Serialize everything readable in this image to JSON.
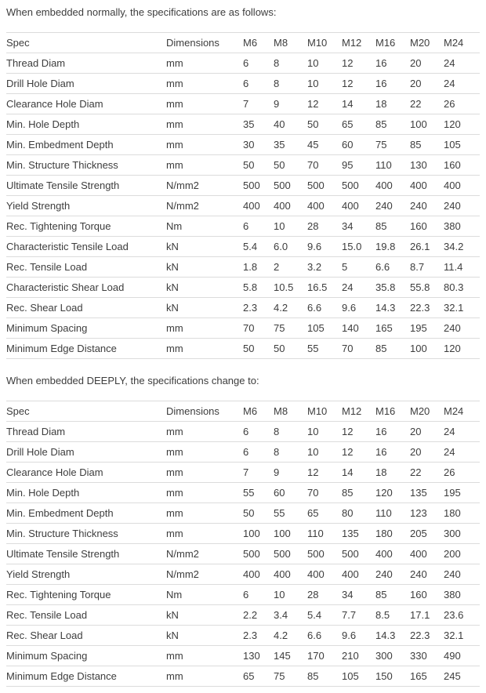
{
  "page": {
    "text_color": "#3d3d3d",
    "border_color": "#dcdcdc",
    "background_color": "#ffffff"
  },
  "sections": [
    {
      "intro": "When embedded normally, the specifications are as follows:",
      "table": {
        "headers": [
          "Spec",
          "Dimensions",
          "M6",
          "M8",
          "M10",
          "M12",
          "M16",
          "M20",
          "M24"
        ],
        "rows": [
          [
            "Thread Diam",
            "mm",
            "6",
            "8",
            "10",
            "12",
            "16",
            "20",
            "24"
          ],
          [
            "Drill Hole Diam",
            "mm",
            "6",
            "8",
            "10",
            "12",
            "16",
            "20",
            "24"
          ],
          [
            "Clearance Hole Diam",
            "mm",
            "7",
            "9",
            "12",
            "14",
            "18",
            "22",
            "26"
          ],
          [
            "Min. Hole Depth",
            "mm",
            "35",
            "40",
            "50",
            "65",
            "85",
            "100",
            "120"
          ],
          [
            "Min. Embedment Depth",
            "mm",
            "30",
            "35",
            "45",
            "60",
            "75",
            "85",
            "105"
          ],
          [
            "Min. Structure Thickness",
            "mm",
            "50",
            "50",
            "70",
            "95",
            "110",
            "130",
            "160"
          ],
          [
            "Ultimate Tensile Strength",
            "N/mm2",
            "500",
            "500",
            "500",
            "500",
            "400",
            "400",
            "400"
          ],
          [
            "Yield Strength",
            "N/mm2",
            "400",
            "400",
            "400",
            "400",
            "240",
            "240",
            "240"
          ],
          [
            "Rec. Tightening Torque",
            "Nm",
            "6",
            "10",
            "28",
            "34",
            "85",
            "160",
            "380"
          ],
          [
            "Characteristic Tensile Load",
            "kN",
            "5.4",
            "6.0",
            "9.6",
            "15.0",
            "19.8",
            "26.1",
            "34.2"
          ],
          [
            "Rec. Tensile Load",
            "kN",
            "1.8",
            "2",
            "3.2",
            "5",
            "6.6",
            "8.7",
            "11.4"
          ],
          [
            "Characteristic Shear Load",
            "kN",
            "5.8",
            "10.5",
            "16.5",
            "24",
            "35.8",
            "55.8",
            "80.3"
          ],
          [
            "Rec. Shear Load",
            "kN",
            "2.3",
            "4.2",
            "6.6",
            "9.6",
            "14.3",
            "22.3",
            "32.1"
          ],
          [
            "Minimum Spacing",
            "mm",
            "70",
            "75",
            "105",
            "140",
            "165",
            "195",
            "240"
          ],
          [
            "Minimum Edge Distance",
            "mm",
            "50",
            "50",
            "55",
            "70",
            "85",
            "100",
            "120"
          ]
        ]
      }
    },
    {
      "intro": "When embedded DEEPLY, the specifications change to:",
      "table": {
        "headers": [
          "Spec",
          "Dimensions",
          "M6",
          "M8",
          "M10",
          "M12",
          "M16",
          "M20",
          "M24"
        ],
        "rows": [
          [
            "Thread Diam",
            "mm",
            "6",
            "8",
            "10",
            "12",
            "16",
            "20",
            "24"
          ],
          [
            "Drill Hole Diam",
            "mm",
            "6",
            "8",
            "10",
            "12",
            "16",
            "20",
            "24"
          ],
          [
            "Clearance Hole Diam",
            "mm",
            "7",
            "9",
            "12",
            "14",
            "18",
            "22",
            "26"
          ],
          [
            "Min. Hole Depth",
            "mm",
            "55",
            "60",
            "70",
            "85",
            "120",
            "135",
            "195"
          ],
          [
            "Min. Embedment Depth",
            "mm",
            "50",
            "55",
            "65",
            "80",
            "110",
            "123",
            "180"
          ],
          [
            "Min. Structure Thickness",
            "mm",
            "100",
            "100",
            "110",
            "135",
            "180",
            "205",
            "300"
          ],
          [
            "Ultimate Tensile Strength",
            "N/mm2",
            "500",
            "500",
            "500",
            "500",
            "400",
            "400",
            "200"
          ],
          [
            "Yield Strength",
            "N/mm2",
            "400",
            "400",
            "400",
            "400",
            "240",
            "240",
            "240"
          ],
          [
            "Rec. Tightening Torque",
            "Nm",
            "6",
            "10",
            "28",
            "34",
            "85",
            "160",
            "380"
          ],
          [
            "Rec. Tensile Load",
            "kN",
            "2.2",
            "3.4",
            "5.4",
            "7.7",
            "8.5",
            "17.1",
            "23.6"
          ],
          [
            "Rec. Shear Load",
            "kN",
            "2.3",
            "4.2",
            "6.6",
            "9.6",
            "14.3",
            "22.3",
            "32.1"
          ],
          [
            "Minimum Spacing",
            "mm",
            "130",
            "145",
            "170",
            "210",
            "300",
            "330",
            "490"
          ],
          [
            "Minimum Edge Distance",
            "mm",
            "65",
            "75",
            "85",
            "105",
            "150",
            "165",
            "245"
          ]
        ]
      }
    }
  ]
}
